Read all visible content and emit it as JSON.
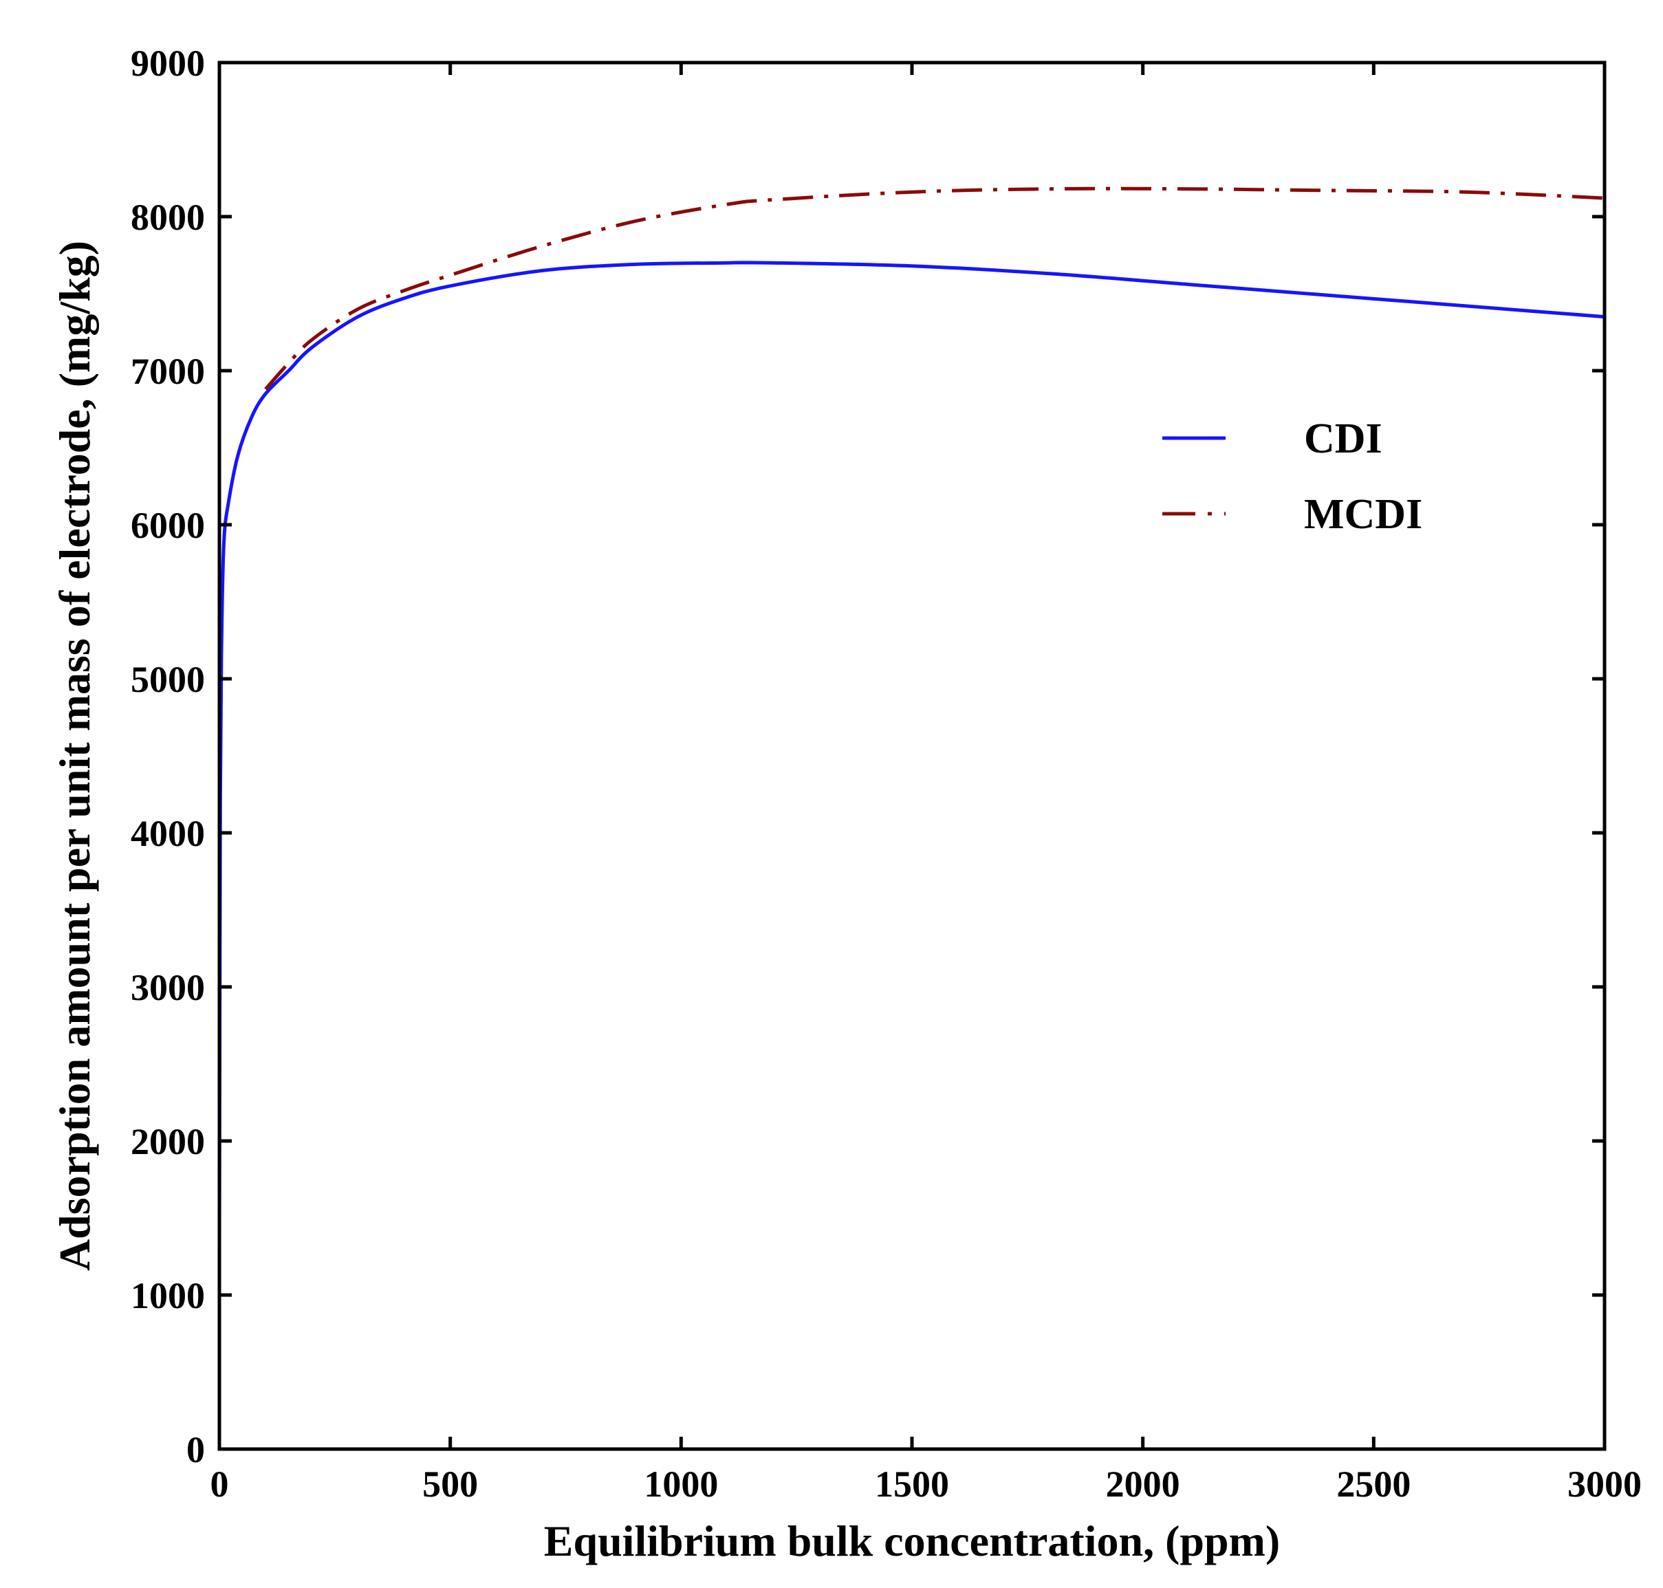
{
  "chart_data": {
    "type": "line",
    "title": "",
    "xlabel": "Equilibrium bulk concentration, (ppm)",
    "ylabel": "Adsorption amount per unit mass of electrode, (mg/kg)",
    "xlim": [
      0,
      3000
    ],
    "ylim": [
      0,
      9000
    ],
    "xticks": [
      "0",
      "500",
      "1000",
      "1500",
      "2000",
      "2500",
      "3000"
    ],
    "yticks": [
      "0",
      "1000",
      "2000",
      "3000",
      "4000",
      "5000",
      "6000",
      "7000",
      "8000",
      "9000"
    ],
    "grid": false,
    "legend_position": "right-upper",
    "series": [
      {
        "name": "CDI",
        "color": "#1515ff",
        "style": "solid",
        "x": [
          0,
          2,
          5,
          10,
          20,
          40,
          70,
          100,
          150,
          200,
          300,
          400,
          500,
          700,
          900,
          1100,
          1200,
          1500,
          1800,
          2100,
          2400,
          2700,
          3000
        ],
        "y": [
          1300,
          4200,
          5300,
          5900,
          6150,
          6450,
          6700,
          6850,
          7000,
          7150,
          7350,
          7470,
          7550,
          7650,
          7690,
          7700,
          7700,
          7680,
          7630,
          7560,
          7490,
          7420,
          7350
        ]
      },
      {
        "name": "MCDI",
        "color": "#8b0a0a",
        "style": "dashdot",
        "x": [
          100,
          150,
          200,
          300,
          400,
          500,
          700,
          900,
          1100,
          1200,
          1500,
          1800,
          2100,
          2400,
          2700,
          3000
        ],
        "y": [
          6880,
          7050,
          7200,
          7400,
          7520,
          7620,
          7810,
          7970,
          8080,
          8110,
          8160,
          8180,
          8180,
          8170,
          8160,
          8120
        ]
      }
    ]
  }
}
